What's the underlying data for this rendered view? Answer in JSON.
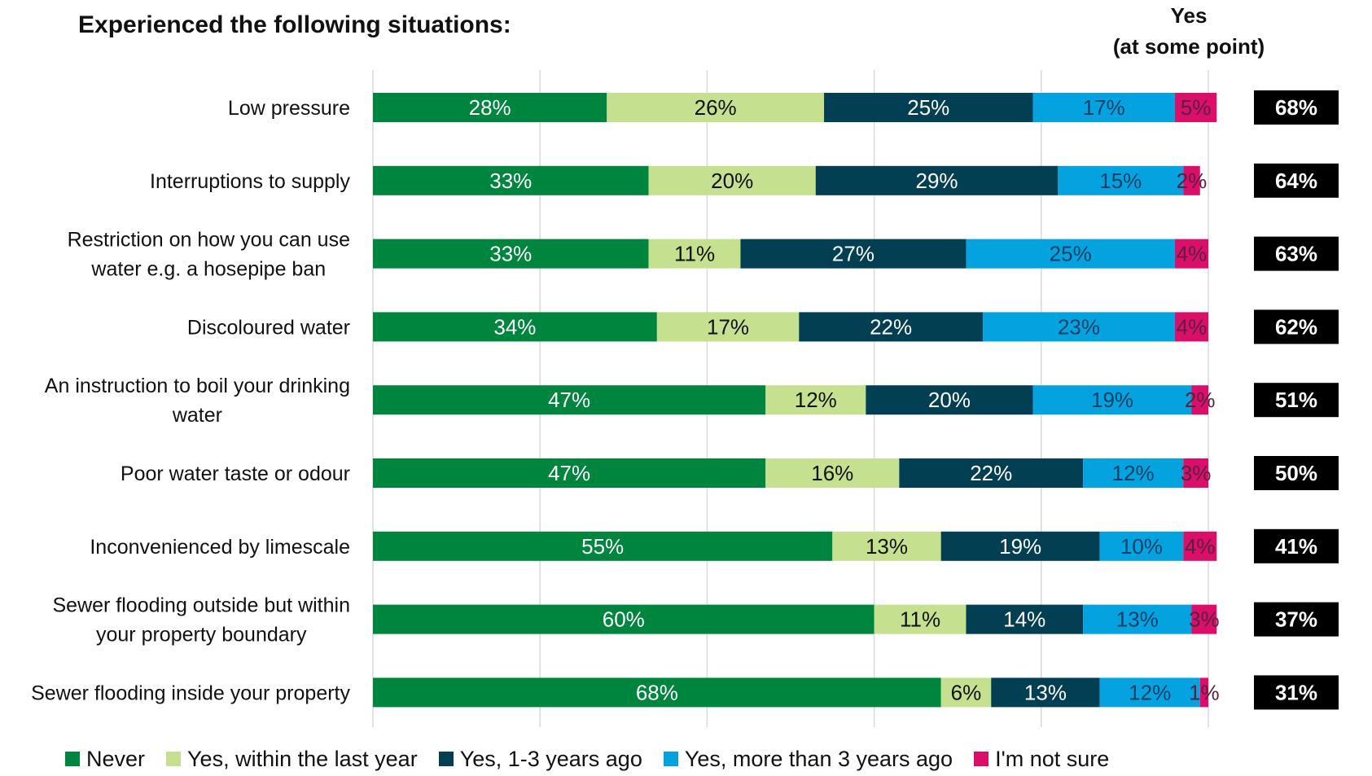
{
  "chart_data": {
    "type": "bar",
    "orientation": "horizontal",
    "stacked": true,
    "title": "Experienced the following situations:",
    "yes_header": [
      "Yes",
      "(at some point)"
    ],
    "categories": [
      [
        "Low pressure"
      ],
      [
        "Interruptions to supply"
      ],
      [
        "Restriction on how you can use",
        "water e.g. a hosepipe ban"
      ],
      [
        "Discoloured water"
      ],
      [
        "An instruction to boil your drinking",
        "water"
      ],
      [
        "Poor water taste or odour"
      ],
      [
        "Inconvenienced by limescale"
      ],
      [
        "Sewer flooding outside but within",
        "your property boundary"
      ],
      [
        "Sewer flooding inside your property"
      ]
    ],
    "series": [
      {
        "name": "Never",
        "color": "#00853F",
        "label_color": "#ffffff",
        "values": [
          28,
          33,
          33,
          34,
          47,
          47,
          55,
          60,
          68
        ]
      },
      {
        "name": "Yes, within the last year",
        "color": "#C5E08E",
        "label_color": "#111111",
        "values": [
          26,
          20,
          11,
          17,
          12,
          16,
          13,
          11,
          6
        ]
      },
      {
        "name": "Yes, 1-3 years ago",
        "color": "#033F52",
        "label_color": "#ffffff",
        "values": [
          25,
          29,
          27,
          22,
          20,
          22,
          19,
          14,
          13
        ]
      },
      {
        "name": "Yes, more than 3 years ago",
        "color": "#04A3E0",
        "label_color": "#0B3F66",
        "values": [
          17,
          15,
          25,
          23,
          19,
          12,
          10,
          13,
          12
        ]
      },
      {
        "name": "I'm not sure",
        "color": "#D90F6A",
        "label_color": "#5a2040",
        "values": [
          5,
          2,
          4,
          4,
          2,
          3,
          4,
          3,
          1
        ]
      }
    ],
    "yes_at_some_point": [
      "68%",
      "64%",
      "63%",
      "62%",
      "51%",
      "50%",
      "41%",
      "37%",
      "31%"
    ],
    "xlim": [
      0,
      100
    ],
    "value_suffix": "%",
    "grid": true,
    "legend_position": "bottom"
  }
}
